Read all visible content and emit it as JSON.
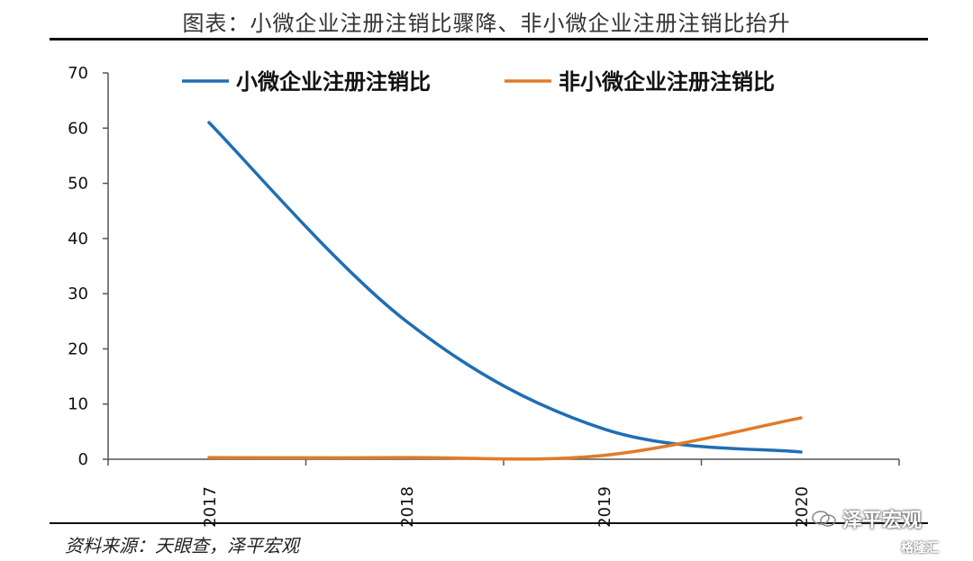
{
  "figure": {
    "title": "图表：小微企业注册注销比骤降、非小微企业注册注销比抬升",
    "source": "资料来源：天眼查，泽平宏观",
    "watermark": "泽平宏观",
    "watermark_small": "格隆汇"
  },
  "chart_data": {
    "type": "line",
    "categories": [
      "2017",
      "2018",
      "2019",
      "2020"
    ],
    "series": [
      {
        "name": "小微企业注册注销比",
        "color": "#1f6eb4",
        "values": [
          61,
          25,
          5.5,
          1.3
        ]
      },
      {
        "name": "非小微企业注册注销比",
        "color": "#e07b28",
        "values": [
          0.3,
          0.3,
          0.7,
          7.5
        ]
      }
    ],
    "ylim": [
      0,
      70
    ],
    "yticks": [
      0,
      10,
      20,
      30,
      40,
      50,
      60,
      70
    ],
    "xlabel": "",
    "ylabel": "",
    "grid": false,
    "legend_position": "top"
  }
}
